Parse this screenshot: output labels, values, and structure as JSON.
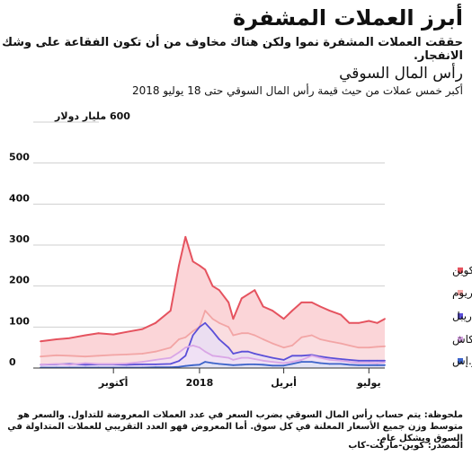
{
  "header": {
    "title": "أبرز العملات المشفرة",
    "subtitle": "حققت العملات المشفرة نموا ولكن هناك مخاوف من أن تكون الفقاعة على وشك الانفجار.",
    "section_title": "رأس المال السوقي",
    "section_subtitle": "أكبر خمس عملات من حيث قيمة رأس المال السوقي حتى 18 يوليو 2018"
  },
  "footer": {
    "note": "ملحوظة: يتم حساب رأس المال السوقي بضرب السعر في عدد العملات المعروضة للتداول. والسعر هو متوسط وزن جميع الأسعار المعلنة في كل سوق. أما المعروض فهو العدد التقريبي للعملات المتداولة في السوق وبشكل عام.",
    "source": "المصدر: كوين-ماركت-كاب"
  },
  "colors": {
    "bitcoin": "#e5535f",
    "ethereum": "#f2a5a5",
    "ripple": "#5b4fd8",
    "bitcoin_cash": "#d9a6e6",
    "eos": "#3c63c9",
    "fill": "#fbd5d8",
    "grid": "#cfcfcf"
  },
  "chart_data": {
    "type": "area",
    "y_unit_label": "600 مليار دولار",
    "ylim": [
      0,
      600
    ],
    "y_ticks": [
      "0",
      "100",
      "200",
      "300",
      "400",
      "500"
    ],
    "x_tick_labels": [
      "أكتوبر",
      "2018",
      "أبريل",
      "يوليو"
    ],
    "x_tick_dates": [
      "2017-10-01",
      "2018-01-01",
      "2018-04-01",
      "2018-07-01"
    ],
    "x": [
      "2017-07-15",
      "2017-08-01",
      "2017-08-15",
      "2017-09-01",
      "2017-09-15",
      "2017-10-01",
      "2017-10-15",
      "2017-11-01",
      "2017-11-15",
      "2017-12-01",
      "2017-12-10",
      "2017-12-17",
      "2017-12-25",
      "2018-01-01",
      "2018-01-07",
      "2018-01-15",
      "2018-01-22",
      "2018-02-01",
      "2018-02-06",
      "2018-02-15",
      "2018-02-22",
      "2018-03-01",
      "2018-03-10",
      "2018-03-20",
      "2018-04-01",
      "2018-04-10",
      "2018-04-20",
      "2018-05-01",
      "2018-05-10",
      "2018-05-20",
      "2018-06-01",
      "2018-06-10",
      "2018-06-20",
      "2018-07-01",
      "2018-07-10",
      "2018-07-18"
    ],
    "grid": true,
    "legend_position": "right",
    "series": [
      {
        "name": "بيتكوين",
        "key": "bitcoin",
        "values": [
          65,
          70,
          73,
          80,
          85,
          82,
          88,
          95,
          110,
          140,
          250,
          320,
          260,
          250,
          240,
          200,
          190,
          160,
          120,
          170,
          180,
          190,
          150,
          140,
          120,
          140,
          160,
          160,
          150,
          140,
          130,
          110,
          110,
          115,
          110,
          120
        ]
      },
      {
        "name": "إثيريوم",
        "key": "ethereum",
        "values": [
          28,
          31,
          30,
          28,
          30,
          32,
          33,
          35,
          40,
          50,
          70,
          75,
          90,
          100,
          140,
          120,
          110,
          100,
          80,
          85,
          85,
          80,
          70,
          60,
          50,
          55,
          75,
          80,
          70,
          65,
          60,
          55,
          50,
          50,
          52,
          53
        ]
      },
      {
        "name": "ريبل",
        "key": "ripple",
        "values": [
          8,
          9,
          10,
          8,
          9,
          9,
          8,
          9,
          9,
          10,
          17,
          30,
          80,
          100,
          110,
          90,
          70,
          50,
          35,
          40,
          40,
          35,
          30,
          25,
          20,
          30,
          30,
          32,
          28,
          25,
          22,
          20,
          18,
          18,
          18,
          18
        ]
      },
      {
        "name": "بيتكوين كاش",
        "key": "bitcoin_cash",
        "values": [
          8,
          10,
          8,
          12,
          10,
          10,
          11,
          15,
          20,
          25,
          38,
          50,
          55,
          50,
          40,
          30,
          28,
          25,
          20,
          25,
          25,
          22,
          18,
          15,
          12,
          15,
          20,
          30,
          25,
          20,
          18,
          15,
          13,
          13,
          12,
          14
        ]
      },
      {
        "name": "إي.أو.إس",
        "key": "eos",
        "values": [
          1,
          1,
          1,
          1,
          1,
          1,
          1,
          1,
          2,
          2,
          3,
          5,
          7,
          8,
          15,
          12,
          10,
          8,
          7,
          8,
          9,
          9,
          8,
          6,
          6,
          10,
          15,
          15,
          12,
          10,
          10,
          8,
          7,
          7,
          7,
          7
        ]
      }
    ]
  }
}
